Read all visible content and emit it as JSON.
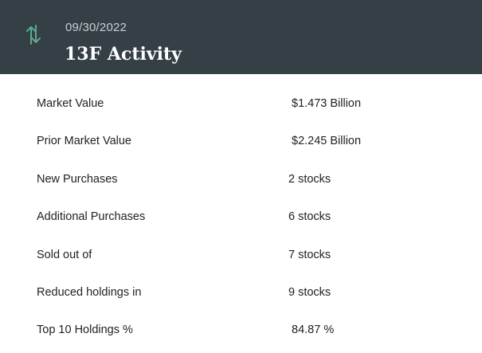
{
  "header": {
    "date": "09/30/2022",
    "title": "13F Activity",
    "icon": "up-down-arrows-icon",
    "accent_color": "#5fa98a",
    "background_color": "#343f46"
  },
  "rows": [
    {
      "label": "Market Value",
      "value": "$1.473 Billion"
    },
    {
      "label": "Prior Market Value",
      "value": "$2.245 Billion"
    },
    {
      "label": "New Purchases",
      "value": "2 stocks"
    },
    {
      "label": "Additional Purchases",
      "value": "6 stocks"
    },
    {
      "label": "Sold out of",
      "value": "7 stocks"
    },
    {
      "label": "Reduced holdings in",
      "value": "9 stocks"
    },
    {
      "label": "Top 10 Holdings %",
      "value": "84.87 %"
    }
  ]
}
